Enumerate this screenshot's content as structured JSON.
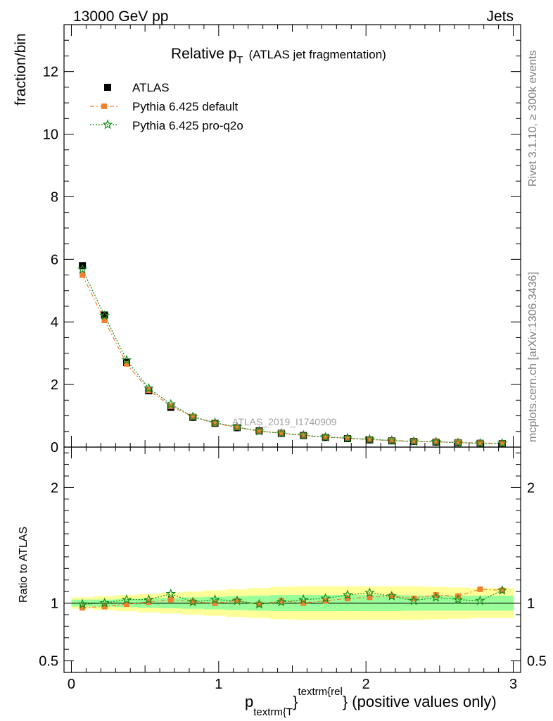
{
  "header": {
    "left": "13000 GeV pp",
    "right": "Jets"
  },
  "side_labels": {
    "rivet": "Rivet 3.1.10, ≥ 300k events",
    "mcplots": "mcplots.cern.ch [arXiv:1306.3436]"
  },
  "main_panel": {
    "title_main": "Relative p",
    "title_sub": "T",
    "title_suffix": "(ATLAS jet fragmentation)",
    "ylabel": "fraction/bin",
    "watermark": "ATLAS_2019_I1740909"
  },
  "ratio_panel": {
    "ylabel": "Ratio to ATLAS"
  },
  "xaxis": {
    "label_p": "p",
    "label_sub": "textrm{T",
    "label_brace": "}",
    "label_sup": "textrm{rel",
    "label_rest": "} (positive values only)"
  },
  "legend": [
    {
      "label": "ATLAS"
    },
    {
      "label": "Pythia 6.425 default"
    },
    {
      "label": "Pythia 6.425 pro-q2o"
    }
  ],
  "colors": {
    "data": "#000000",
    "default": "#f08030",
    "proq2o": "#1a8a1a",
    "band_inner": "#99ff99",
    "band_outer": "#ffff99"
  },
  "chart_data": [
    {
      "type": "scatter",
      "panel": "main",
      "xlim": [
        -0.05,
        3.05
      ],
      "ylim": [
        0,
        13.5
      ],
      "yticks": [
        0,
        2,
        4,
        6,
        8,
        10,
        12
      ],
      "xticks": [
        0,
        1,
        2,
        3
      ],
      "x": [
        0.075,
        0.225,
        0.375,
        0.525,
        0.675,
        0.825,
        0.975,
        1.125,
        1.275,
        1.425,
        1.575,
        1.725,
        1.875,
        2.025,
        2.175,
        2.325,
        2.475,
        2.625,
        2.775,
        2.925
      ],
      "series": [
        {
          "name": "ATLAS",
          "marker": "square",
          "values": [
            5.8,
            4.22,
            2.7,
            1.8,
            1.27,
            0.95,
            0.76,
            0.62,
            0.52,
            0.44,
            0.37,
            0.31,
            0.27,
            0.23,
            0.2,
            0.18,
            0.16,
            0.14,
            0.12,
            0.11
          ]
        },
        {
          "name": "Pythia 6.425 default",
          "marker": "filled-square",
          "values": [
            5.5,
            4.05,
            2.66,
            1.82,
            1.31,
            0.97,
            0.76,
            0.63,
            0.51,
            0.45,
            0.37,
            0.32,
            0.28,
            0.24,
            0.21,
            0.19,
            0.17,
            0.15,
            0.13,
            0.12
          ]
        },
        {
          "name": "Pythia 6.425 pro-q2o",
          "marker": "star",
          "values": [
            5.68,
            4.2,
            2.78,
            1.88,
            1.37,
            0.97,
            0.78,
            0.64,
            0.51,
            0.44,
            0.38,
            0.32,
            0.29,
            0.25,
            0.21,
            0.18,
            0.17,
            0.14,
            0.12,
            0.12
          ]
        }
      ]
    },
    {
      "type": "scatter",
      "panel": "ratio",
      "xlim": [
        -0.05,
        3.05
      ],
      "ylim": [
        0.4,
        2.35
      ],
      "yticks": [
        0.5,
        1,
        2
      ],
      "reference_line": 1,
      "x": [
        0.075,
        0.225,
        0.375,
        0.525,
        0.675,
        0.825,
        0.975,
        1.125,
        1.275,
        1.425,
        1.575,
        1.725,
        1.875,
        2.025,
        2.175,
        2.325,
        2.475,
        2.625,
        2.775,
        2.925
      ],
      "band_inner_halfwidth": [
        0.03,
        0.03,
        0.035,
        0.04,
        0.045,
        0.05,
        0.055,
        0.06,
        0.065,
        0.07,
        0.07,
        0.07,
        0.07,
        0.07,
        0.07,
        0.065,
        0.065,
        0.065,
        0.065,
        0.065
      ],
      "band_outer_halfwidth": [
        0.05,
        0.06,
        0.07,
        0.08,
        0.09,
        0.1,
        0.11,
        0.12,
        0.13,
        0.14,
        0.145,
        0.145,
        0.145,
        0.145,
        0.145,
        0.145,
        0.14,
        0.135,
        0.13,
        0.13
      ],
      "series": [
        {
          "name": "Pythia 6.425 default",
          "values": [
            0.96,
            0.97,
            0.99,
            1.01,
            1.03,
            1.01,
            1.0,
            1.02,
            0.99,
            1.02,
            1.0,
            1.02,
            1.04,
            1.05,
            1.06,
            1.04,
            1.07,
            1.06,
            1.12,
            1.11
          ]
        },
        {
          "name": "Pythia 6.425 pro-q2o",
          "values": [
            0.99,
            1.0,
            1.03,
            1.03,
            1.08,
            1.01,
            1.03,
            1.02,
            0.99,
            1.01,
            1.03,
            1.04,
            1.07,
            1.09,
            1.06,
            1.02,
            1.05,
            1.03,
            1.02,
            1.11
          ]
        }
      ]
    }
  ]
}
